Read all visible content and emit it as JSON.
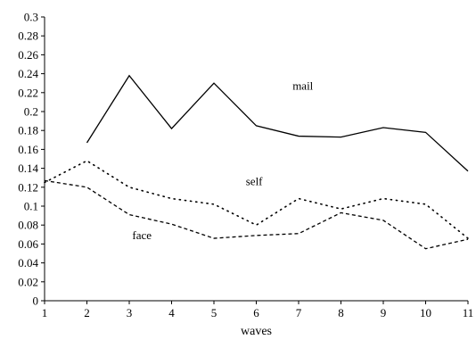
{
  "chart_data": {
    "type": "line",
    "title": "",
    "xlabel": "waves",
    "ylabel": "",
    "xlim": [
      1,
      11
    ],
    "ylim": [
      0,
      0.3
    ],
    "x_ticks": [
      "1",
      "2",
      "3",
      "4",
      "5",
      "6",
      "7",
      "8",
      "9",
      "10",
      "11"
    ],
    "y_ticks": [
      "0",
      "0.02",
      "0.04",
      "0.06",
      "0.08",
      "0.1",
      "0.12",
      "0.14",
      "0.16",
      "0.18",
      "0.2",
      "0.22",
      "0.24",
      "0.26",
      "0.28",
      "0.3"
    ],
    "grid": false,
    "legend": "none (inline labels)",
    "series": [
      {
        "name": "mail",
        "style": "solid",
        "color": "#000000",
        "x": [
          2,
          3,
          4,
          5,
          6,
          7,
          8,
          9,
          10,
          11
        ],
        "values": [
          0.167,
          0.238,
          0.182,
          0.23,
          0.185,
          0.174,
          0.173,
          0.183,
          0.178,
          0.137
        ]
      },
      {
        "name": "self",
        "style": "dotted",
        "color": "#000000",
        "x": [
          1,
          2,
          3,
          4,
          5,
          6,
          7,
          8,
          9,
          10,
          11
        ],
        "values": [
          0.125,
          0.148,
          0.12,
          0.108,
          0.102,
          0.08,
          0.108,
          0.097,
          0.108,
          0.102,
          0.066
        ]
      },
      {
        "name": "face",
        "style": "dashed",
        "color": "#000000",
        "x": [
          1,
          2,
          3,
          4,
          5,
          6,
          7,
          8,
          9,
          10,
          11
        ],
        "values": [
          0.127,
          0.12,
          0.091,
          0.081,
          0.066,
          0.069,
          0.071,
          0.093,
          0.085,
          0.055,
          0.065
        ]
      }
    ],
    "annotations": [
      {
        "text": "mail",
        "series": "mail",
        "x": 7.1,
        "y": 0.223
      },
      {
        "text": "self",
        "series": "self",
        "x": 5.95,
        "y": 0.122
      },
      {
        "text": "face",
        "series": "face",
        "x": 3.3,
        "y": 0.065
      }
    ]
  }
}
